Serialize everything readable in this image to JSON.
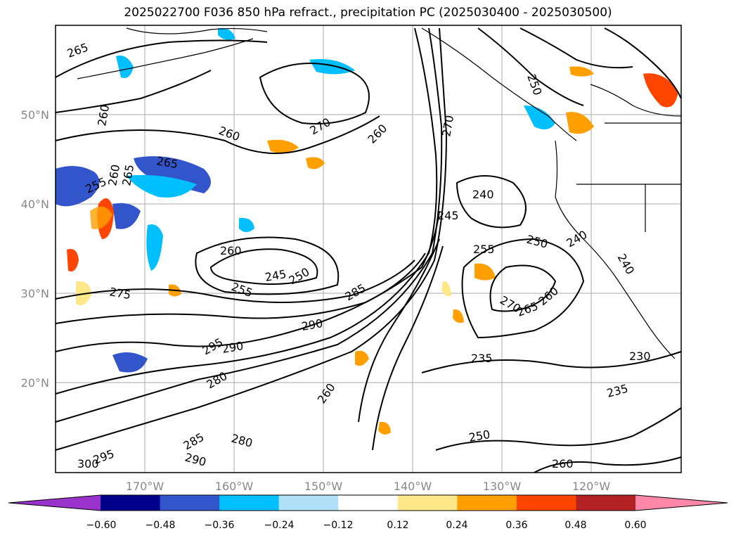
{
  "title": "2025022700 F036 850 hPa refract., precipitation PC (2025030400 - 2025030500)",
  "map": {
    "lat_labels": [
      "50°N",
      "40°N",
      "30°N",
      "20°N"
    ],
    "lon_labels": [
      "170°W",
      "160°W",
      "150°W",
      "140°W",
      "130°W",
      "120°W"
    ],
    "contour_labels": [
      "265",
      "260",
      "260",
      "270",
      "260",
      "265",
      "255",
      "260",
      "265",
      "270",
      "245",
      "240",
      "250",
      "255",
      "260",
      "245",
      "250",
      "255",
      "275",
      "285",
      "290",
      "295",
      "290",
      "280",
      "270",
      "265",
      "260",
      "250",
      "240",
      "240",
      "235",
      "230",
      "235",
      "260",
      "250",
      "280",
      "285",
      "290",
      "295",
      "300",
      "260"
    ]
  },
  "colorbar": {
    "ticks": [
      "−0.60",
      "−0.48",
      "−0.36",
      "−0.24",
      "−0.12",
      "0.12",
      "0.24",
      "0.36",
      "0.48",
      "0.60"
    ],
    "colors": [
      "#9933cc",
      "#00008b",
      "#3355cc",
      "#00bfff",
      "#b0e0f8",
      "#ffffff",
      "#ffe88a",
      "#ffa000",
      "#ff4500",
      "#b22222",
      "#ff88aa"
    ]
  }
}
